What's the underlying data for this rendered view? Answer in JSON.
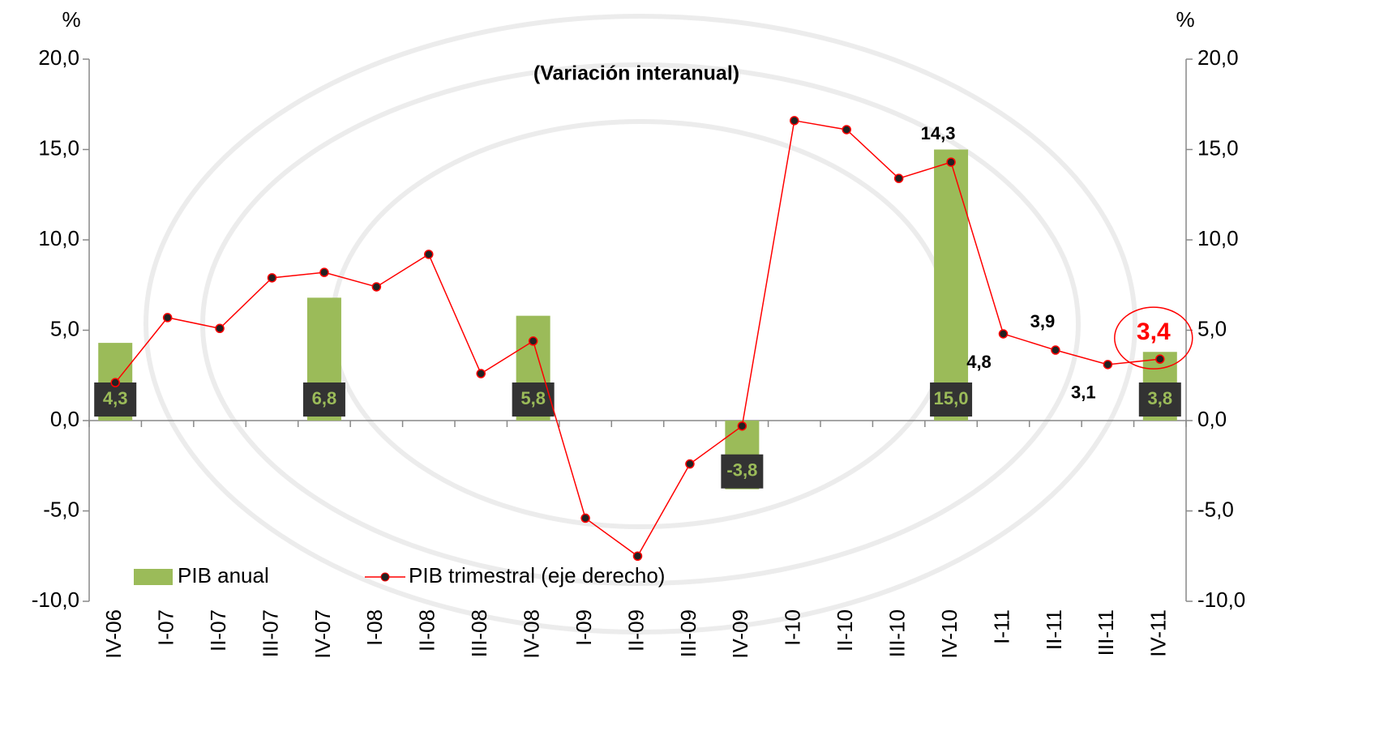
{
  "chart_data": {
    "type": "bar-line",
    "title": "(Variación interanual)",
    "y_unit": "%",
    "y2_unit": "%",
    "categories": [
      "IV-06",
      "I-07",
      "II-07",
      "III-07",
      "IV-07",
      "I-08",
      "II-08",
      "III-08",
      "IV-08",
      "I-09",
      "II-09",
      "III-09",
      "IV-09",
      "I-10",
      "II-10",
      "III-10",
      "IV-10",
      "I-11",
      "II-11",
      "III-11",
      "IV-11"
    ],
    "series": [
      {
        "name": "PIB anual",
        "type": "bar",
        "color": "#9bbb59",
        "values": [
          4.3,
          null,
          null,
          null,
          6.8,
          null,
          null,
          null,
          5.8,
          null,
          null,
          null,
          -3.8,
          null,
          null,
          null,
          15.0,
          null,
          null,
          null,
          3.8
        ],
        "value_labels": [
          "4,3",
          null,
          null,
          null,
          "6,8",
          null,
          null,
          null,
          "5,8",
          null,
          null,
          null,
          "-3,8",
          null,
          null,
          null,
          "15,0",
          null,
          null,
          null,
          "3,8"
        ]
      },
      {
        "name": "PIB trimestral (eje derecho)",
        "type": "line",
        "color": "#ff0000",
        "axis": "y2",
        "values": [
          2.1,
          5.7,
          5.1,
          7.9,
          8.2,
          7.4,
          9.2,
          2.6,
          4.4,
          -5.4,
          -7.5,
          -2.4,
          -0.3,
          16.6,
          16.1,
          13.4,
          14.3,
          4.8,
          3.9,
          3.1,
          3.4
        ],
        "value_labels": [
          null,
          null,
          null,
          null,
          null,
          null,
          null,
          null,
          null,
          null,
          null,
          null,
          null,
          null,
          null,
          null,
          "14,3",
          "4,8",
          "3,9",
          "3,1",
          "3,4"
        ]
      }
    ],
    "ylim": [
      -10,
      20
    ],
    "yticks": [
      {
        "value": -10,
        "label": "-10,0"
      },
      {
        "value": -5,
        "label": "-5,0"
      },
      {
        "value": 0,
        "label": "0,0"
      },
      {
        "value": 5,
        "label": "5,0"
      },
      {
        "value": 10,
        "label": "10,0"
      },
      {
        "value": 15,
        "label": "15,0"
      },
      {
        "value": 20,
        "label": "20,0"
      }
    ],
    "y2lim": [
      -10,
      20
    ],
    "y2ticks": [
      {
        "value": -10,
        "label": "-10,0"
      },
      {
        "value": -5,
        "label": "-5,0"
      },
      {
        "value": 0,
        "label": "0,0"
      },
      {
        "value": 5,
        "label": "5,0"
      },
      {
        "value": 10,
        "label": "10,0"
      },
      {
        "value": 15,
        "label": "15,0"
      },
      {
        "value": 20,
        "label": "20,0"
      }
    ],
    "grid": false,
    "legend": "bottom-left"
  }
}
